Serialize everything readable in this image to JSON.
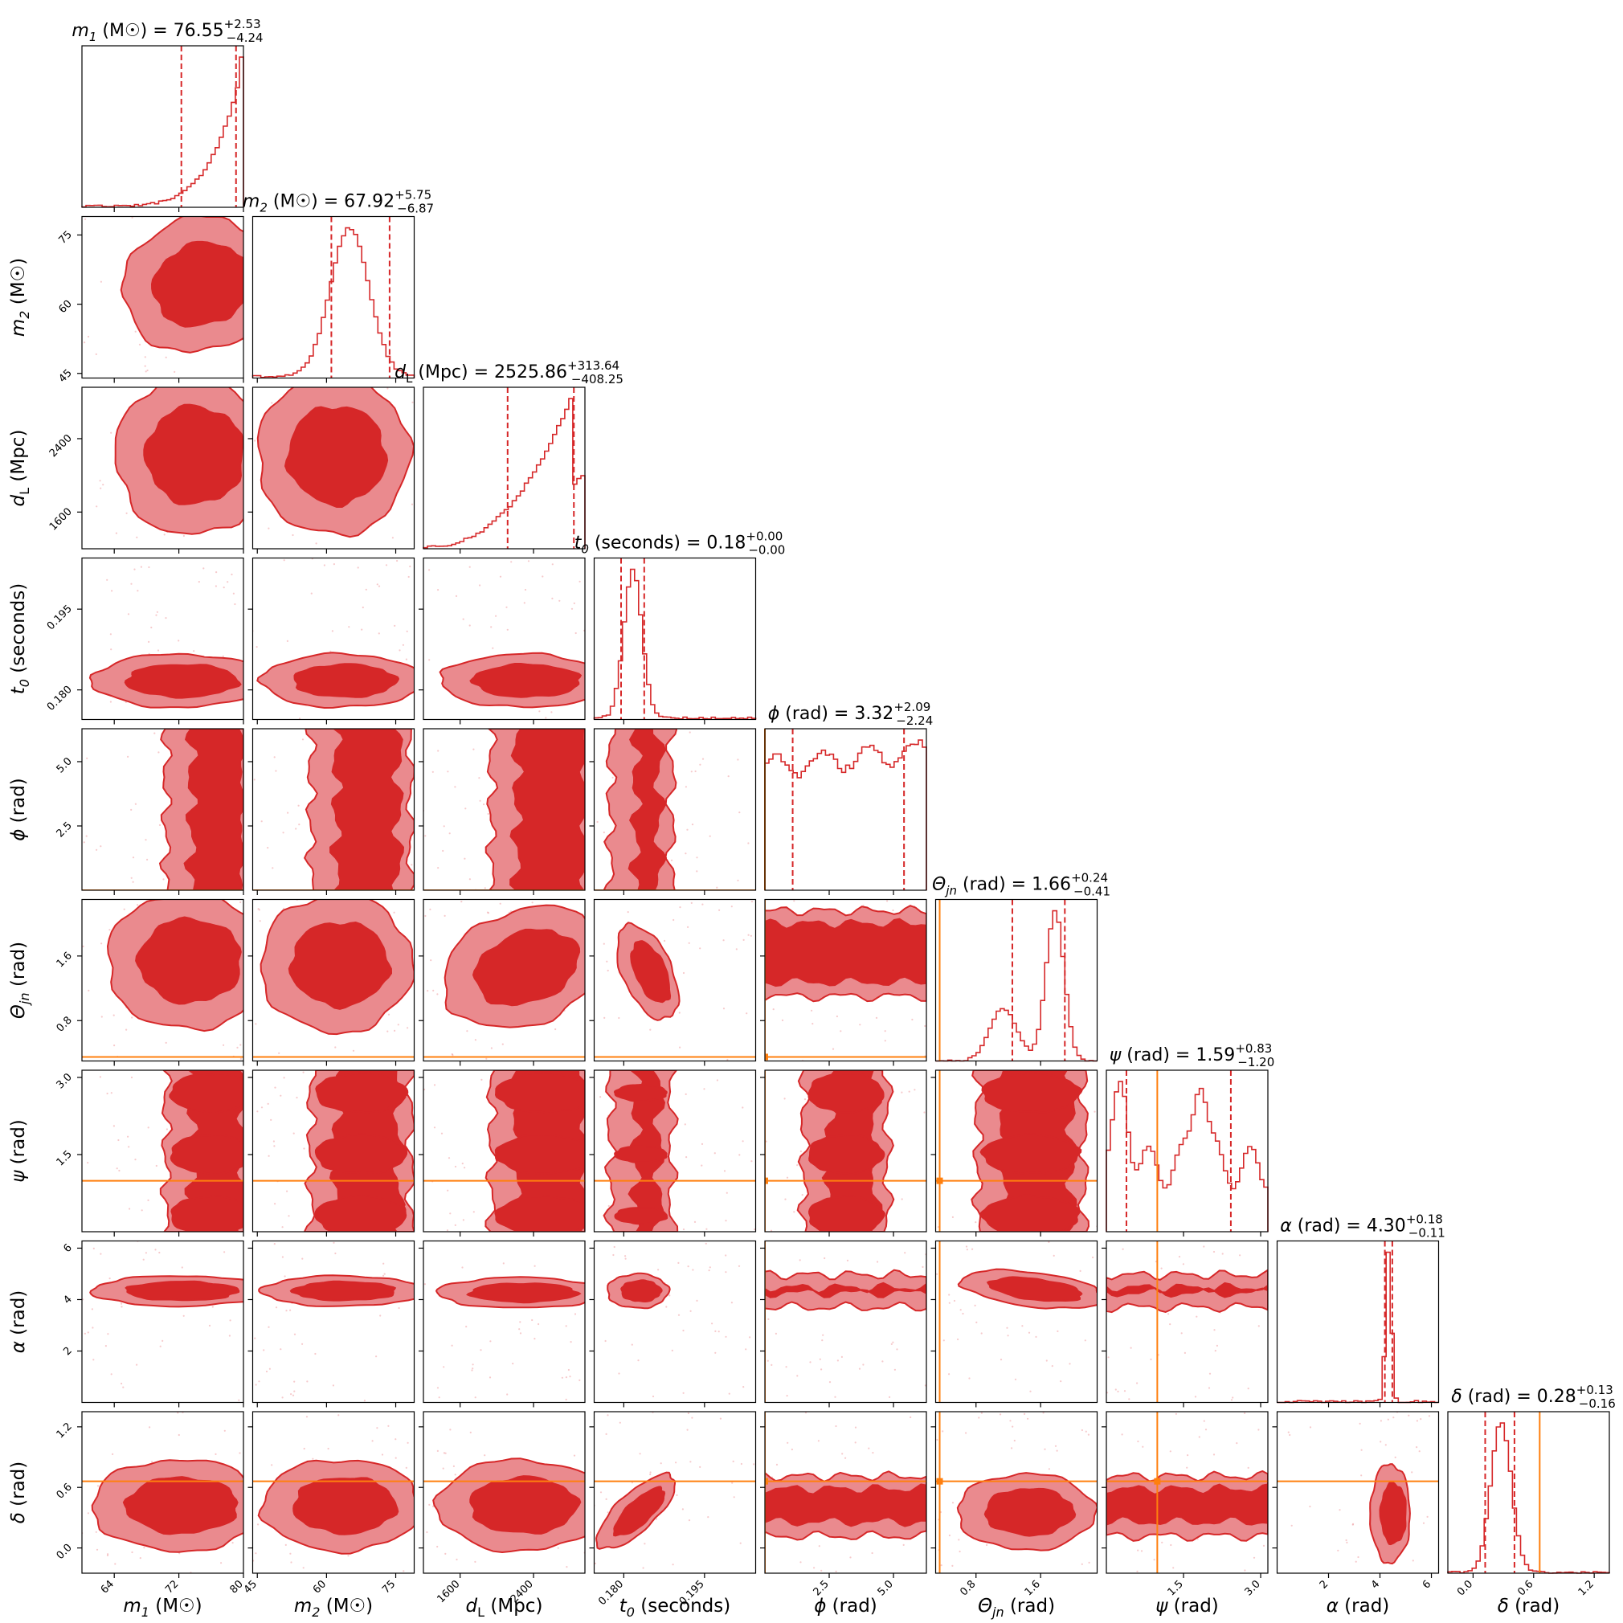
{
  "chart_data": {
    "type": "corner",
    "parameters": [
      {
        "symbol": "m",
        "sub": "1",
        "unit": "(M☉)",
        "median": "76.55",
        "plus": "+2.53",
        "minus": "−4.24",
        "range": [
          60,
          80
        ],
        "ticks": [
          "64",
          "72",
          "80"
        ],
        "tick_values": [
          64,
          72,
          80
        ],
        "q16": 72.31,
        "q84": 79.08,
        "truth": null
      },
      {
        "symbol": "m",
        "sub": "2",
        "unit": "(M☉)",
        "median": "67.92",
        "plus": "+5.75",
        "minus": "−6.87",
        "range": [
          44,
          79
        ],
        "ticks": [
          "45",
          "60",
          "75"
        ],
        "tick_values": [
          45,
          60,
          75
        ],
        "q16": 61.05,
        "q84": 73.67,
        "truth": null
      },
      {
        "symbol": "d",
        "sub": "L",
        "unit": "(Mpc)",
        "median": "2525.86",
        "plus": "+313.64",
        "minus": "−408.25",
        "range": [
          1200,
          2960
        ],
        "ticks": [
          "1600",
          "2400"
        ],
        "tick_values": [
          1600,
          2400
        ],
        "q16": 2117.61,
        "q84": 2839.5,
        "truth": null
      },
      {
        "symbol": "t",
        "sub": "0",
        "unit": "(seconds)",
        "median": "0.18",
        "plus": "+0.00",
        "minus": "−0.00",
        "range": [
          0.1745,
          0.2045
        ],
        "ticks": [
          "0.180",
          "0.195"
        ],
        "tick_values": [
          0.18,
          0.195
        ],
        "q16": 0.1795,
        "q84": 0.1838,
        "truth": null
      },
      {
        "symbol": "ϕ",
        "sub": "",
        "unit": "(rad)",
        "median": "3.32",
        "plus": "+2.09",
        "minus": "−2.24",
        "range": [
          0,
          6.28
        ],
        "ticks": [
          "2.5",
          "5.0"
        ],
        "tick_values": [
          2.5,
          5.0
        ],
        "q16": 1.08,
        "q84": 5.41,
        "truth": 0.0
      },
      {
        "symbol": "Θ",
        "sub": "jn",
        "unit": "(rad)",
        "median": "1.66",
        "plus": "+0.24",
        "minus": "−0.41",
        "range": [
          0.3,
          2.3
        ],
        "ticks": [
          "0.8",
          "1.6"
        ],
        "tick_values": [
          0.8,
          1.6
        ],
        "q16": 1.25,
        "q84": 1.9,
        "truth": 0.35
      },
      {
        "symbol": "ψ",
        "sub": "",
        "unit": "(rad)",
        "median": "1.59",
        "plus": "+0.83",
        "minus": "−1.20",
        "range": [
          0,
          3.14
        ],
        "ticks": [
          "1.5",
          "3.0"
        ],
        "tick_values": [
          1.5,
          3.0
        ],
        "q16": 0.39,
        "q84": 2.42,
        "truth": 0.99
      },
      {
        "symbol": "α",
        "sub": "",
        "unit": "(rad)",
        "median": "4.30",
        "plus": "+0.18",
        "minus": "−0.11",
        "range": [
          0,
          6.28
        ],
        "ticks": [
          "2",
          "4",
          "6"
        ],
        "tick_values": [
          2,
          4,
          6
        ],
        "q16": 4.19,
        "q84": 4.48,
        "truth": null
      },
      {
        "symbol": "δ",
        "sub": "",
        "unit": "(rad)",
        "median": "0.28",
        "plus": "+0.13",
        "minus": "−0.16",
        "range": [
          -0.25,
          1.35
        ],
        "ticks": [
          "0.0",
          "0.6",
          "1.2"
        ],
        "tick_values": [
          0.0,
          0.6,
          1.2
        ],
        "q16": 0.12,
        "q84": 0.41,
        "truth": 0.66
      }
    ],
    "colors": {
      "posterior": "#d62728",
      "posterior_light": "#ea8a8e",
      "posterior_pale": "#f7d3d4",
      "truth": "#ff7f0e",
      "axes": "#000000"
    }
  }
}
